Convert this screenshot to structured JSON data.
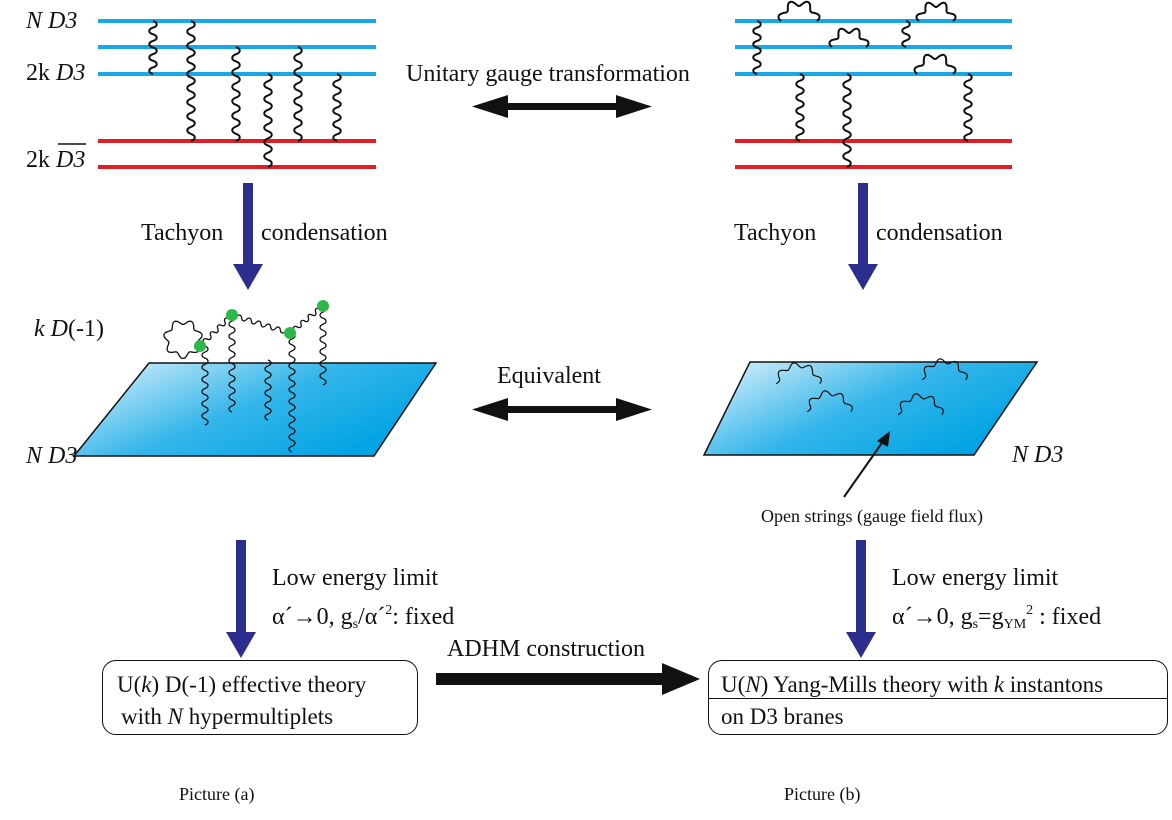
{
  "picture_a": {
    "brane_labels": {
      "nd3_n": "N",
      "nd3_d": "D3",
      "d3_2k": "2k",
      "d3_d": "D3",
      "anti_2k": "2k",
      "anti_d": "D3"
    },
    "tachyon": {
      "left": "Tachyon",
      "right": "condensation"
    },
    "instanton_label": {
      "k": "k",
      "d": "D",
      "rest": "(-1)"
    },
    "plane_label": {
      "n": "N",
      "d": "D3"
    },
    "low_energy": {
      "title": "Low energy limit",
      "alpha": "α´",
      "arrow": "→0, g",
      "s": "s",
      "slash": "/α´",
      "sq": "2",
      "fixed": ": fixed"
    },
    "box": {
      "u": "U(",
      "k": "k",
      "rest1": ") D(-1) effective theory",
      "with": "with ",
      "n": "N",
      "rest2": " hypermultiplets"
    },
    "caption": "Picture (a)"
  },
  "picture_b": {
    "tachyon": {
      "left": "Tachyon",
      "right": "condensation"
    },
    "plane_label": {
      "n": "N",
      "d": "D3"
    },
    "open_strings": "Open strings (gauge field flux)",
    "low_energy": {
      "title": "Low energy limit",
      "alpha": "α´",
      "arrow": "→0, g",
      "s": "s",
      "eq": "=g",
      "ym": "YM",
      "sq": "2",
      "fixed": " : fixed"
    },
    "box": {
      "u": "U(",
      "n": "N",
      "rest1": ") Yang-Mills theory with ",
      "k": "k",
      "rest2": " instantons",
      "line2": "on D3 branes"
    },
    "caption": "Picture (b)"
  },
  "relations": {
    "unitary": "Unitary gauge transformation",
    "equivalent": "Equivalent",
    "adhm": "ADHM construction"
  },
  "colors": {
    "d3": "#1aa7e8",
    "anti_d3": "#e01e25",
    "arrow": "#2b2e8c",
    "dot": "#2fb84a",
    "plane_light": "#e3f4fc",
    "plane_dark": "#00a3e3"
  }
}
